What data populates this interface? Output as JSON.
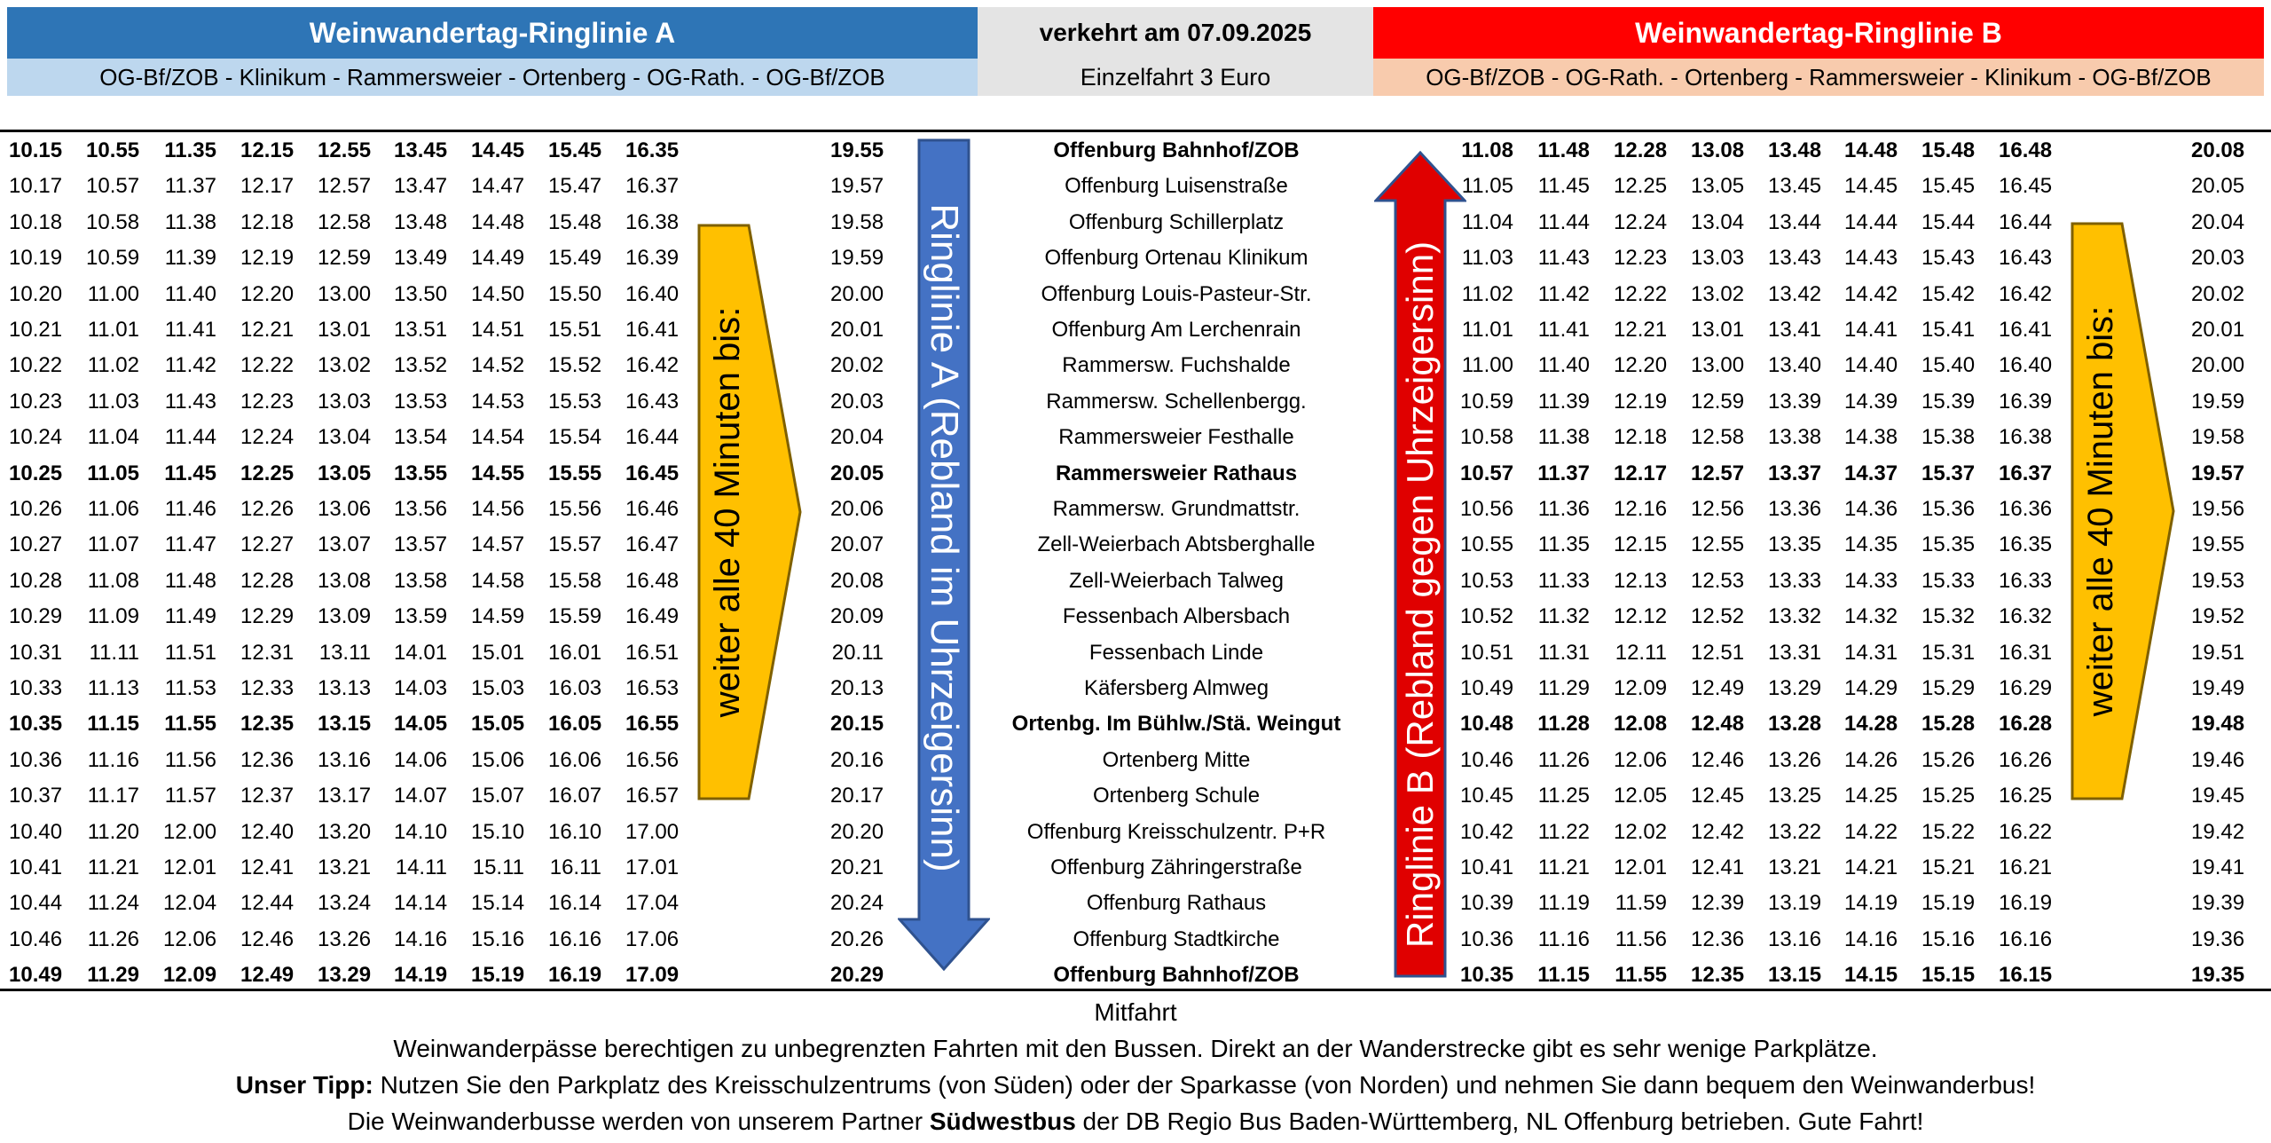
{
  "header": {
    "line_a_title": "Weinwandertag-Ringlinie A",
    "line_a_route": "OG-Bf/ZOB - Klinikum - Rammersweier - Ortenberg - OG-Rath. - OG-Bf/ZOB",
    "date_text": "verkehrt am 07.09.2025",
    "fare_text": "Einzelfahrt 3 Euro",
    "line_b_title": "Weinwandertag-Ringlinie B",
    "line_b_route": "OG-Bf/ZOB - OG-Rath. - Ortenberg - Rammersweier - Klinikum - OG-Bf/ZOB"
  },
  "colors": {
    "line_a": "#2e75b6",
    "line_a_light": "#bdd7ee",
    "line_b": "#ff0000",
    "line_b_light": "#f8cbad",
    "neutral": "#e4e4e4",
    "arrow_blue": "#4472c4",
    "arrow_red": "#e00000",
    "arrow_yellow": "#ffc000"
  },
  "arrows": {
    "line_a_label": "Ringlinie A (Rebland im Uhrzeigersinn)",
    "line_b_label": "Ringlinie B (Rebland gegen Uhrzeigersinn)",
    "interval_left": "weiter alle 40 Minuten bis:",
    "interval_right": "weiter alle 40 Minuten bis:"
  },
  "timetable": {
    "rows": [
      {
        "bold": true,
        "stop": "Offenburg Bahnhof/ZOB",
        "a": [
          "10.15",
          "10.55",
          "11.35",
          "12.15",
          "12.55",
          "13.45",
          "14.45",
          "15.45",
          "16.35"
        ],
        "a_last": "19.55",
        "b": [
          "11.08",
          "11.48",
          "12.28",
          "13.08",
          "13.48",
          "14.48",
          "15.48",
          "16.48"
        ],
        "b_last": "20.08"
      },
      {
        "bold": false,
        "stop": "Offenburg Luisenstraße",
        "a": [
          "10.17",
          "10.57",
          "11.37",
          "12.17",
          "12.57",
          "13.47",
          "14.47",
          "15.47",
          "16.37"
        ],
        "a_last": "19.57",
        "b": [
          "11.05",
          "11.45",
          "12.25",
          "13.05",
          "13.45",
          "14.45",
          "15.45",
          "16.45"
        ],
        "b_last": "20.05"
      },
      {
        "bold": false,
        "stop": "Offenburg Schillerplatz",
        "a": [
          "10.18",
          "10.58",
          "11.38",
          "12.18",
          "12.58",
          "13.48",
          "14.48",
          "15.48",
          "16.38"
        ],
        "a_last": "19.58",
        "b": [
          "11.04",
          "11.44",
          "12.24",
          "13.04",
          "13.44",
          "14.44",
          "15.44",
          "16.44"
        ],
        "b_last": "20.04"
      },
      {
        "bold": false,
        "stop": "Offenburg Ortenau Klinikum",
        "a": [
          "10.19",
          "10.59",
          "11.39",
          "12.19",
          "12.59",
          "13.49",
          "14.49",
          "15.49",
          "16.39"
        ],
        "a_last": "19.59",
        "b": [
          "11.03",
          "11.43",
          "12.23",
          "13.03",
          "13.43",
          "14.43",
          "15.43",
          "16.43"
        ],
        "b_last": "20.03"
      },
      {
        "bold": false,
        "stop": "Offenburg Louis-Pasteur-Str.",
        "a": [
          "10.20",
          "11.00",
          "11.40",
          "12.20",
          "13.00",
          "13.50",
          "14.50",
          "15.50",
          "16.40"
        ],
        "a_last": "20.00",
        "b": [
          "11.02",
          "11.42",
          "12.22",
          "13.02",
          "13.42",
          "14.42",
          "15.42",
          "16.42"
        ],
        "b_last": "20.02"
      },
      {
        "bold": false,
        "stop": "Offenburg Am Lerchenrain",
        "a": [
          "10.21",
          "11.01",
          "11.41",
          "12.21",
          "13.01",
          "13.51",
          "14.51",
          "15.51",
          "16.41"
        ],
        "a_last": "20.01",
        "b": [
          "11.01",
          "11.41",
          "12.21",
          "13.01",
          "13.41",
          "14.41",
          "15.41",
          "16.41"
        ],
        "b_last": "20.01"
      },
      {
        "bold": false,
        "stop": "Rammersw. Fuchshalde",
        "a": [
          "10.22",
          "11.02",
          "11.42",
          "12.22",
          "13.02",
          "13.52",
          "14.52",
          "15.52",
          "16.42"
        ],
        "a_last": "20.02",
        "b": [
          "11.00",
          "11.40",
          "12.20",
          "13.00",
          "13.40",
          "14.40",
          "15.40",
          "16.40"
        ],
        "b_last": "20.00"
      },
      {
        "bold": false,
        "stop": "Rammersw. Schellenbergg.",
        "a": [
          "10.23",
          "11.03",
          "11.43",
          "12.23",
          "13.03",
          "13.53",
          "14.53",
          "15.53",
          "16.43"
        ],
        "a_last": "20.03",
        "b": [
          "10.59",
          "11.39",
          "12.19",
          "12.59",
          "13.39",
          "14.39",
          "15.39",
          "16.39"
        ],
        "b_last": "19.59"
      },
      {
        "bold": false,
        "stop": "Rammersweier Festhalle",
        "a": [
          "10.24",
          "11.04",
          "11.44",
          "12.24",
          "13.04",
          "13.54",
          "14.54",
          "15.54",
          "16.44"
        ],
        "a_last": "20.04",
        "b": [
          "10.58",
          "11.38",
          "12.18",
          "12.58",
          "13.38",
          "14.38",
          "15.38",
          "16.38"
        ],
        "b_last": "19.58"
      },
      {
        "bold": true,
        "stop": "Rammersweier Rathaus",
        "a": [
          "10.25",
          "11.05",
          "11.45",
          "12.25",
          "13.05",
          "13.55",
          "14.55",
          "15.55",
          "16.45"
        ],
        "a_last": "20.05",
        "b": [
          "10.57",
          "11.37",
          "12.17",
          "12.57",
          "13.37",
          "14.37",
          "15.37",
          "16.37"
        ],
        "b_last": "19.57"
      },
      {
        "bold": false,
        "stop": "Rammersw. Grundmattstr.",
        "a": [
          "10.26",
          "11.06",
          "11.46",
          "12.26",
          "13.06",
          "13.56",
          "14.56",
          "15.56",
          "16.46"
        ],
        "a_last": "20.06",
        "b": [
          "10.56",
          "11.36",
          "12.16",
          "12.56",
          "13.36",
          "14.36",
          "15.36",
          "16.36"
        ],
        "b_last": "19.56"
      },
      {
        "bold": false,
        "stop": "Zell-Weierbach Abtsberghalle",
        "a": [
          "10.27",
          "11.07",
          "11.47",
          "12.27",
          "13.07",
          "13.57",
          "14.57",
          "15.57",
          "16.47"
        ],
        "a_last": "20.07",
        "b": [
          "10.55",
          "11.35",
          "12.15",
          "12.55",
          "13.35",
          "14.35",
          "15.35",
          "16.35"
        ],
        "b_last": "19.55"
      },
      {
        "bold": false,
        "stop": "Zell-Weierbach Talweg",
        "a": [
          "10.28",
          "11.08",
          "11.48",
          "12.28",
          "13.08",
          "13.58",
          "14.58",
          "15.58",
          "16.48"
        ],
        "a_last": "20.08",
        "b": [
          "10.53",
          "11.33",
          "12.13",
          "12.53",
          "13.33",
          "14.33",
          "15.33",
          "16.33"
        ],
        "b_last": "19.53"
      },
      {
        "bold": false,
        "stop": "Fessenbach Albersbach",
        "a": [
          "10.29",
          "11.09",
          "11.49",
          "12.29",
          "13.09",
          "13.59",
          "14.59",
          "15.59",
          "16.49"
        ],
        "a_last": "20.09",
        "b": [
          "10.52",
          "11.32",
          "12.12",
          "12.52",
          "13.32",
          "14.32",
          "15.32",
          "16.32"
        ],
        "b_last": "19.52"
      },
      {
        "bold": false,
        "stop": "Fessenbach Linde",
        "a": [
          "10.31",
          "11.11",
          "11.51",
          "12.31",
          "13.11",
          "14.01",
          "15.01",
          "16.01",
          "16.51"
        ],
        "a_last": "20.11",
        "b": [
          "10.51",
          "11.31",
          "12.11",
          "12.51",
          "13.31",
          "14.31",
          "15.31",
          "16.31"
        ],
        "b_last": "19.51"
      },
      {
        "bold": false,
        "stop": "Käfersberg Almweg",
        "a": [
          "10.33",
          "11.13",
          "11.53",
          "12.33",
          "13.13",
          "14.03",
          "15.03",
          "16.03",
          "16.53"
        ],
        "a_last": "20.13",
        "b": [
          "10.49",
          "11.29",
          "12.09",
          "12.49",
          "13.29",
          "14.29",
          "15.29",
          "16.29"
        ],
        "b_last": "19.49"
      },
      {
        "bold": true,
        "stop": "Ortenbg. Im Bühlw./Stä. Weingut",
        "a": [
          "10.35",
          "11.15",
          "11.55",
          "12.35",
          "13.15",
          "14.05",
          "15.05",
          "16.05",
          "16.55"
        ],
        "a_last": "20.15",
        "b": [
          "10.48",
          "11.28",
          "12.08",
          "12.48",
          "13.28",
          "14.28",
          "15.28",
          "16.28"
        ],
        "b_last": "19.48"
      },
      {
        "bold": false,
        "stop": "Ortenberg Mitte",
        "a": [
          "10.36",
          "11.16",
          "11.56",
          "12.36",
          "13.16",
          "14.06",
          "15.06",
          "16.06",
          "16.56"
        ],
        "a_last": "20.16",
        "b": [
          "10.46",
          "11.26",
          "12.06",
          "12.46",
          "13.26",
          "14.26",
          "15.26",
          "16.26"
        ],
        "b_last": "19.46"
      },
      {
        "bold": false,
        "stop": "Ortenberg Schule",
        "a": [
          "10.37",
          "11.17",
          "11.57",
          "12.37",
          "13.17",
          "14.07",
          "15.07",
          "16.07",
          "16.57"
        ],
        "a_last": "20.17",
        "b": [
          "10.45",
          "11.25",
          "12.05",
          "12.45",
          "13.25",
          "14.25",
          "15.25",
          "16.25"
        ],
        "b_last": "19.45"
      },
      {
        "bold": false,
        "stop": "Offenburg Kreisschulzentr. P+R",
        "a": [
          "10.40",
          "11.20",
          "12.00",
          "12.40",
          "13.20",
          "14.10",
          "15.10",
          "16.10",
          "17.00"
        ],
        "a_last": "20.20",
        "b": [
          "10.42",
          "11.22",
          "12.02",
          "12.42",
          "13.22",
          "14.22",
          "15.22",
          "16.22"
        ],
        "b_last": "19.42"
      },
      {
        "bold": false,
        "stop": "Offenburg Zähringerstraße",
        "a": [
          "10.41",
          "11.21",
          "12.01",
          "12.41",
          "13.21",
          "14.11",
          "15.11",
          "16.11",
          "17.01"
        ],
        "a_last": "20.21",
        "b": [
          "10.41",
          "11.21",
          "12.01",
          "12.41",
          "13.21",
          "14.21",
          "15.21",
          "16.21"
        ],
        "b_last": "19.41"
      },
      {
        "bold": false,
        "stop": "Offenburg Rathaus",
        "a": [
          "10.44",
          "11.24",
          "12.04",
          "12.44",
          "13.24",
          "14.14",
          "15.14",
          "16.14",
          "17.04"
        ],
        "a_last": "20.24",
        "b": [
          "10.39",
          "11.19",
          "11.59",
          "12.39",
          "13.19",
          "14.19",
          "15.19",
          "16.19"
        ],
        "b_last": "19.39"
      },
      {
        "bold": false,
        "stop": "Offenburg Stadtkirche",
        "a": [
          "10.46",
          "11.26",
          "12.06",
          "12.46",
          "13.26",
          "14.16",
          "15.16",
          "16.16",
          "17.06"
        ],
        "a_last": "20.26",
        "b": [
          "10.36",
          "11.16",
          "11.56",
          "12.36",
          "13.16",
          "14.16",
          "15.16",
          "16.16"
        ],
        "b_last": "19.36"
      },
      {
        "bold": true,
        "stop": "Offenburg Bahnhof/ZOB",
        "a": [
          "10.49",
          "11.29",
          "12.09",
          "12.49",
          "13.29",
          "14.19",
          "15.19",
          "16.19",
          "17.09"
        ],
        "a_last": "20.29",
        "b": [
          "10.35",
          "11.15",
          "11.55",
          "12.35",
          "13.15",
          "14.15",
          "15.15",
          "16.15"
        ],
        "b_last": "19.35"
      }
    ]
  },
  "footer": {
    "line1": "Mitfahrt",
    "line2": "Weinwanderpässe berechtigen zu unbegrenzten Fahrten mit den Bussen. Direkt an der Wanderstrecke gibt es sehr wenige Parkplätze.",
    "line3_bold": "Unser Tipp:",
    "line3_rest": " Nutzen Sie den Parkplatz des Kreisschulzentrums (von Süden) oder der Sparkasse (von Norden) und nehmen Sie dann bequem den Weinwanderbus!",
    "line4_pre": "Die Weinwanderbusse werden von unserem Partner ",
    "line4_bold": "Südwestbus",
    "line4_post": " der DB Regio Bus Baden-Württemberg, NL Offenburg betrieben. Gute Fahrt!"
  }
}
